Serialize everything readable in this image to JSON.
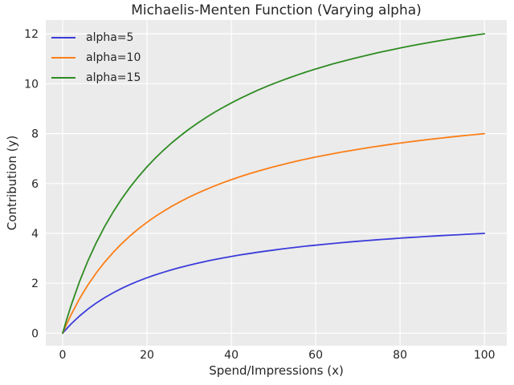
{
  "chart_data": {
    "type": "line",
    "title": "Michaelis-Menten Function (Varying alpha)",
    "xlabel": "Spend/Impressions (x)",
    "ylabel": "Contribution (y)",
    "xticks": [
      0,
      20,
      40,
      60,
      80,
      100
    ],
    "yticks": [
      0,
      2,
      4,
      6,
      8,
      10,
      12
    ],
    "xlim": [
      -4,
      105.3
    ],
    "ylim": [
      -0.5,
      12.55
    ],
    "grid": true,
    "legend_position": "upper left",
    "plot_bg_color": "#ebebeb",
    "grid_color": "#ffffff",
    "text_color": "#262626",
    "x": [
      0,
      1,
      2,
      4,
      6,
      8,
      10,
      12,
      14,
      16,
      18,
      20,
      22,
      24,
      26,
      28,
      30,
      32,
      34,
      36,
      38,
      40,
      42,
      44,
      46,
      48,
      50,
      52,
      54,
      56,
      58,
      60,
      62,
      64,
      66,
      68,
      70,
      72,
      74,
      76,
      78,
      80,
      82,
      84,
      86,
      88,
      90,
      92,
      94,
      96,
      98,
      100
    ],
    "series": [
      {
        "name": "alpha=5",
        "color": "#3b3bdb",
        "values": [
          0,
          0.192,
          0.37,
          0.69,
          0.968,
          1.212,
          1.429,
          1.622,
          1.795,
          1.951,
          2.093,
          2.222,
          2.34,
          2.449,
          2.549,
          2.642,
          2.727,
          2.807,
          2.881,
          2.951,
          3.016,
          3.077,
          3.134,
          3.188,
          3.239,
          3.288,
          3.333,
          3.377,
          3.418,
          3.457,
          3.494,
          3.529,
          3.563,
          3.596,
          3.626,
          3.656,
          3.684,
          3.711,
          3.737,
          3.762,
          3.786,
          3.81,
          3.832,
          3.853,
          3.874,
          3.894,
          3.913,
          3.932,
          3.95,
          3.967,
          3.984,
          4.0
        ]
      },
      {
        "name": "alpha=10",
        "color": "#fb7e17",
        "values": [
          0,
          0.385,
          0.741,
          1.379,
          1.935,
          2.424,
          2.857,
          3.243,
          3.59,
          3.902,
          4.186,
          4.444,
          4.681,
          4.898,
          5.098,
          5.283,
          5.455,
          5.614,
          5.763,
          5.902,
          6.032,
          6.154,
          6.269,
          6.377,
          6.479,
          6.575,
          6.667,
          6.753,
          6.835,
          6.914,
          6.988,
          7.059,
          7.126,
          7.191,
          7.253,
          7.312,
          7.368,
          7.423,
          7.475,
          7.525,
          7.573,
          7.619,
          7.664,
          7.706,
          7.748,
          7.788,
          7.826,
          7.863,
          7.899,
          7.934,
          7.967,
          8.0
        ]
      },
      {
        "name": "alpha=15",
        "color": "#2e8b22",
        "values": [
          0,
          0.577,
          1.111,
          2.069,
          2.903,
          3.636,
          4.286,
          4.865,
          5.385,
          5.854,
          6.279,
          6.667,
          7.021,
          7.347,
          7.647,
          7.925,
          8.182,
          8.421,
          8.644,
          8.852,
          9.048,
          9.231,
          9.403,
          9.565,
          9.718,
          9.863,
          10.0,
          10.13,
          10.253,
          10.37,
          10.482,
          10.588,
          10.69,
          10.787,
          10.879,
          10.968,
          11.053,
          11.134,
          11.212,
          11.287,
          11.359,
          11.429,
          11.495,
          11.56,
          11.622,
          11.681,
          11.739,
          11.795,
          11.849,
          11.901,
          11.951,
          12.0
        ]
      }
    ]
  }
}
